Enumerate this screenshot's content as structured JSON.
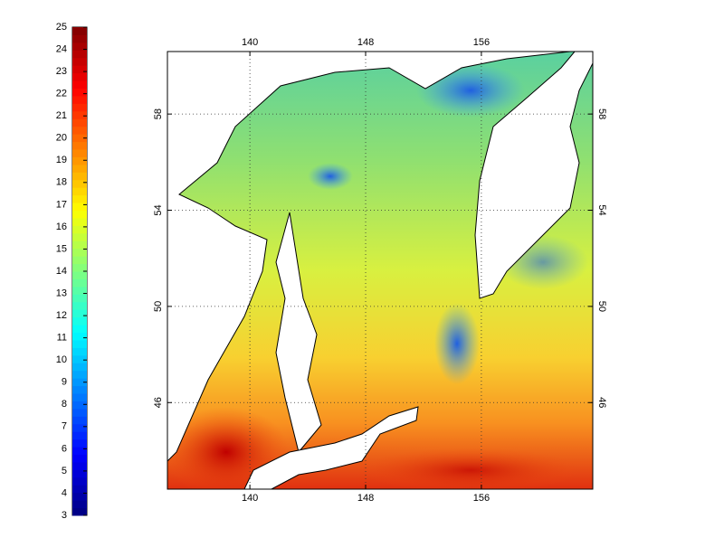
{
  "colorbar": {
    "range": [
      3,
      25
    ],
    "ticks": [
      3,
      4,
      5,
      6,
      7,
      8,
      9,
      10,
      11,
      12,
      13,
      14,
      15,
      16,
      17,
      18,
      19,
      20,
      21,
      22,
      23,
      24,
      25
    ]
  },
  "map": {
    "xlim": [
      134.3,
      163.7
    ],
    "ylim": [
      42.4,
      60.6
    ],
    "xticks": [
      140,
      148,
      156
    ],
    "yticks": [
      46,
      50,
      54,
      58
    ],
    "grid": true
  }
}
